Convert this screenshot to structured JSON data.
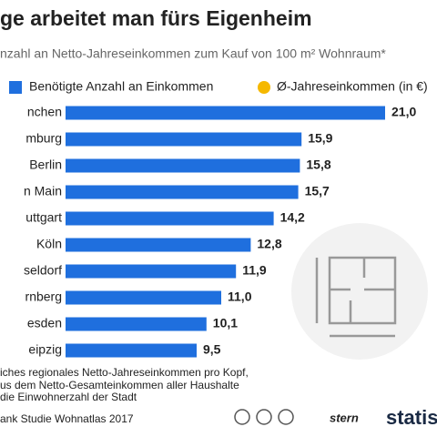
{
  "chart_data": {
    "type": "bar",
    "orientation": "horizontal",
    "title": "ge arbeitet man fürs Eigenheim",
    "subtitle": "nzahl an Netto-Jahreseinkommen zum Kauf von 100 m² Wohnraum*",
    "categories": [
      "nchen",
      "mburg",
      "Berlin",
      "n Main",
      "uttgart",
      "Köln",
      "seldorf",
      "rnberg",
      "esden",
      "eipzig"
    ],
    "series": [
      {
        "name": "Benötigte Anzahl an Einkommen",
        "color": "#1f6fde",
        "values": [
          21.0,
          15.9,
          15.8,
          15.7,
          14.2,
          12.8,
          11.9,
          11.0,
          10.1,
          9.5
        ],
        "value_labels": [
          "21,0",
          "15,9",
          "15,8",
          "15,7",
          "14,2",
          "12,8",
          "11,9",
          "11,0",
          "10,1",
          "9,5"
        ]
      }
    ],
    "extra_legend": {
      "name": "Ø-Jahreseinkommen (in €)",
      "color": "#f5b800"
    },
    "xlim": [
      1.5,
      22.5
    ],
    "footnotes": [
      "iches regionales Netto-Jahreseinkommen pro Kopf,",
      "us dem Netto-Gesamteinkommen aller Haushalte",
      "die Einwohnerzahl der Stadt"
    ],
    "source": "ank Studie Wohnatlas 2017",
    "logos": [
      "stern",
      "statist"
    ]
  }
}
